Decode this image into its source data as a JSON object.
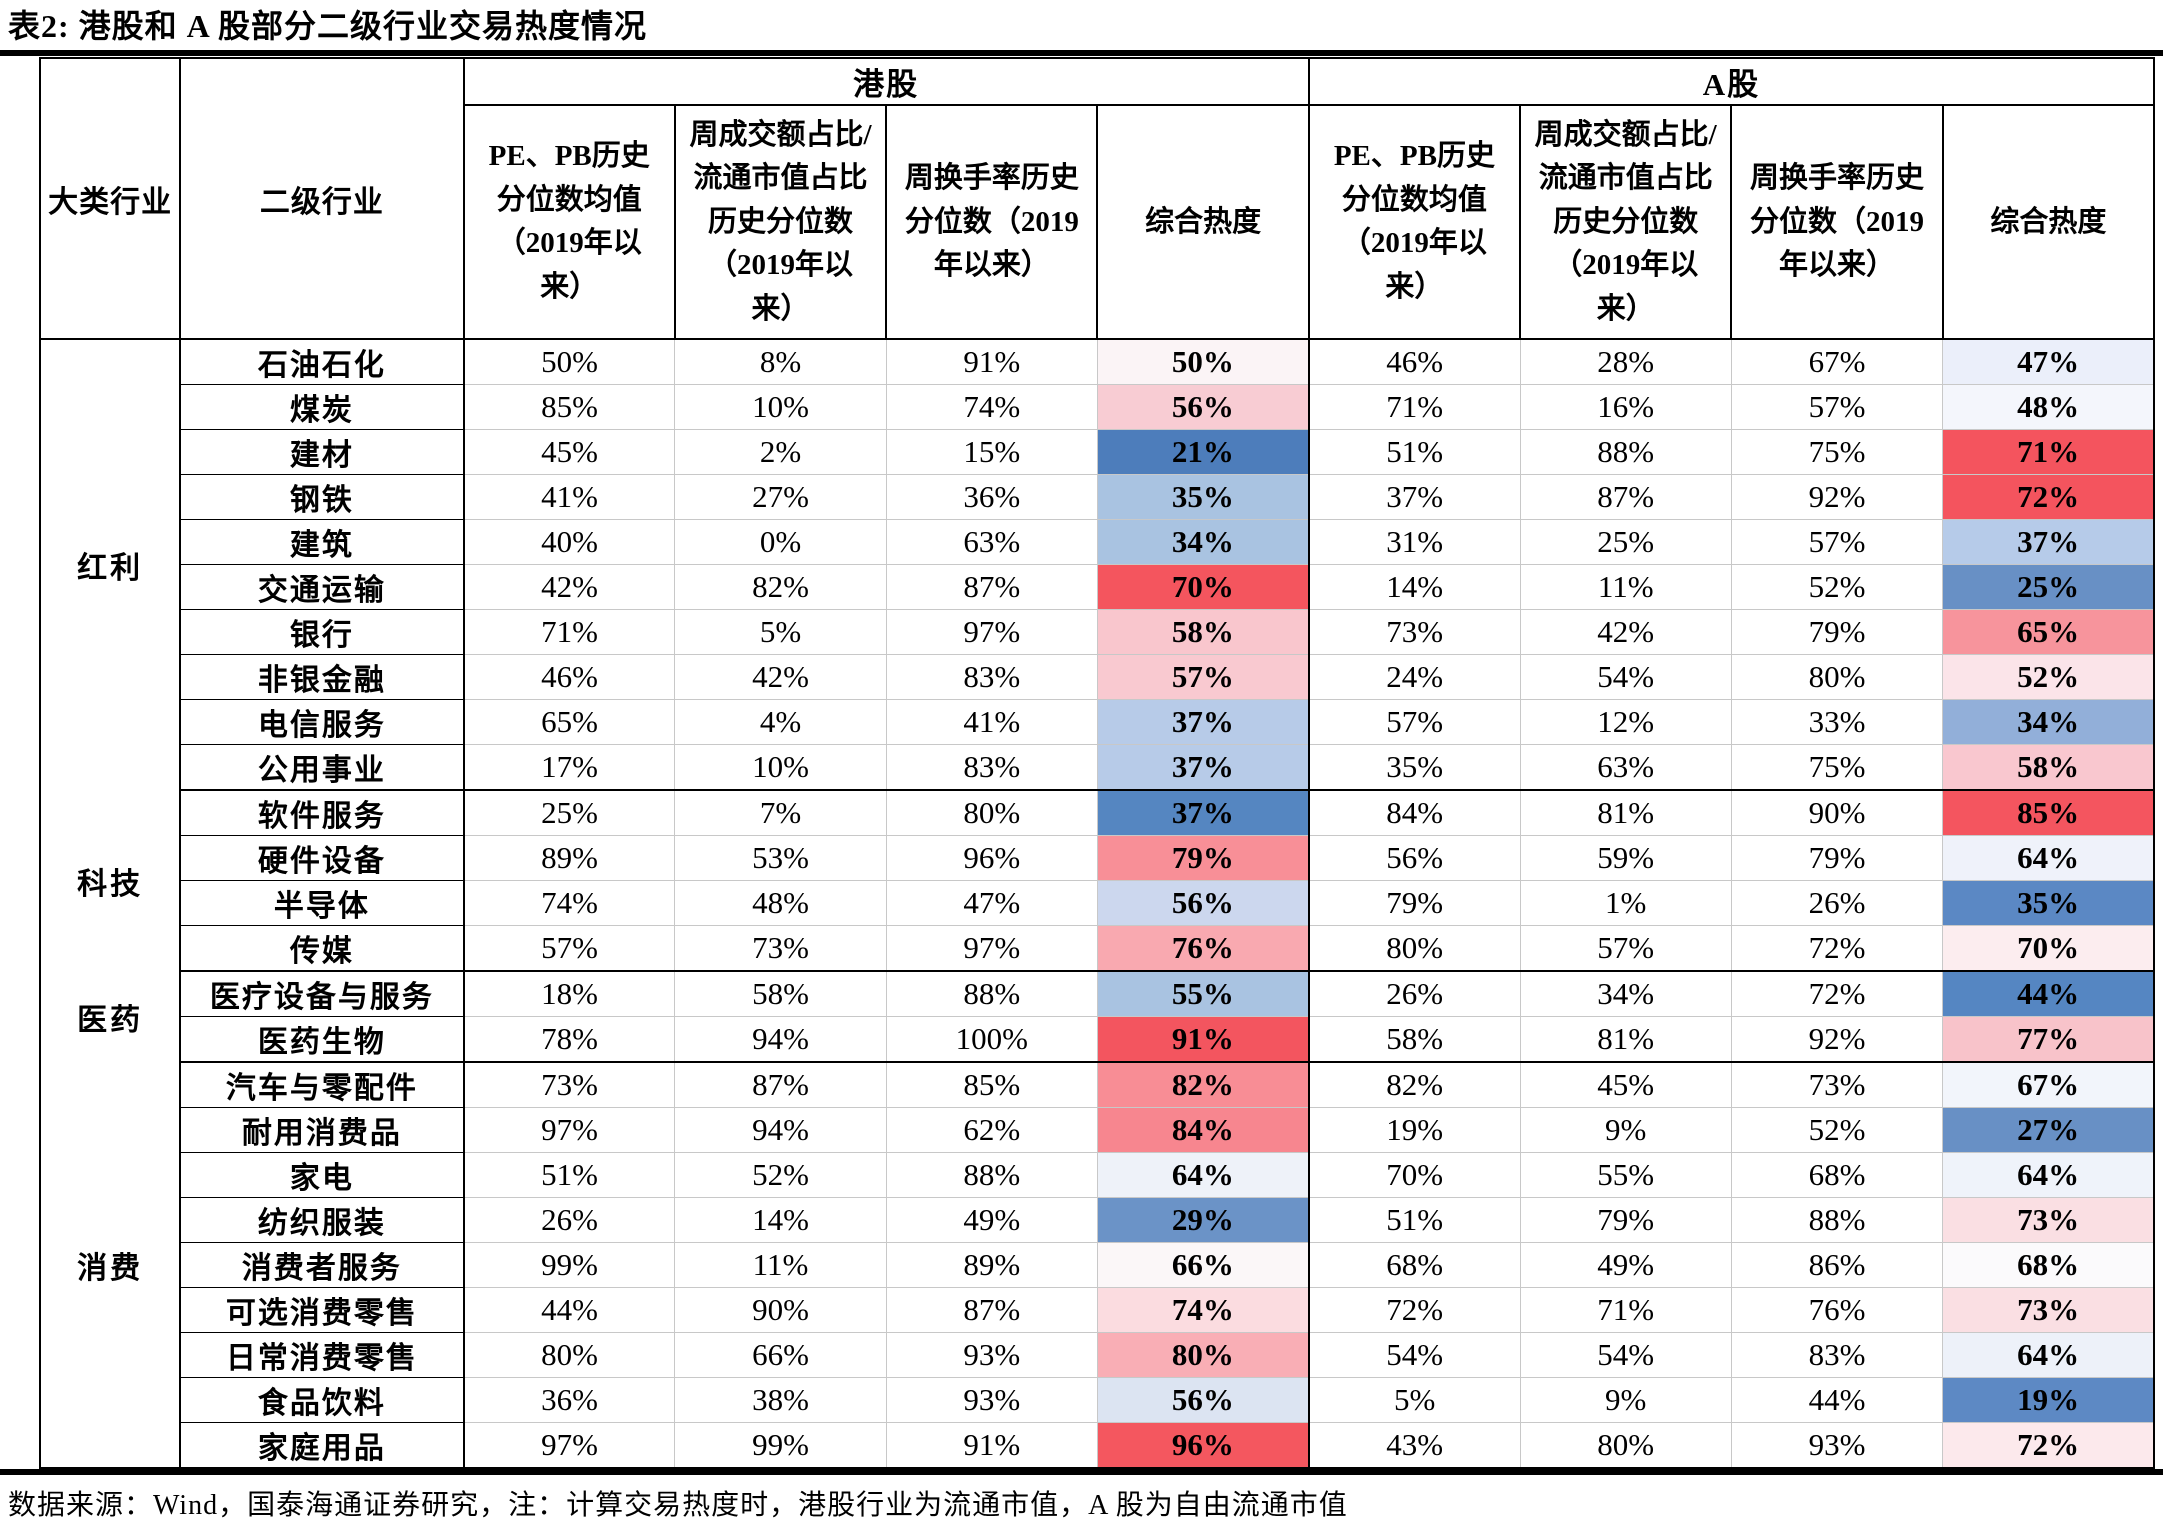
{
  "page": {
    "title": "表2: 港股和 A 股部分二级行业交易热度情况",
    "footer": "数据来源：Wind，国泰海通证券研究，注：计算交易热度时，港股行业为流通市值，A 股为自由流通市值"
  },
  "table": {
    "col_headers": {
      "major_industry": "大类行业",
      "sub_industry": "二级行业",
      "hk_market": "港股",
      "a_market": "A股",
      "metrics": [
        "PE、PB历史分位数均值（2019年以来）",
        "周成交额占比/流通市值占比历史分位数（2019年以来）",
        "周换手率历史分位数（2019年以来）",
        "综合热度"
      ]
    },
    "heat_scale": {
      "low_color": "#4d7dbb",
      "mid_color": "#ffffff",
      "high_color": "#f4545e"
    },
    "groups": [
      {
        "name": "红利",
        "rows": [
          {
            "industry": "石油石化",
            "hk": [
              "50%",
              "8%",
              "91%"
            ],
            "hk_heat": "50%",
            "hk_heat_bg": "#fbf4f6",
            "a": [
              "46%",
              "28%",
              "67%"
            ],
            "a_heat": "47%",
            "a_heat_bg": "#ebeffa"
          },
          {
            "industry": "煤炭",
            "hk": [
              "85%",
              "10%",
              "74%"
            ],
            "hk_heat": "56%",
            "hk_heat_bg": "#f8ccd3",
            "a": [
              "71%",
              "16%",
              "57%"
            ],
            "a_heat": "48%",
            "a_heat_bg": "#f4f6fc"
          },
          {
            "industry": "建材",
            "hk": [
              "45%",
              "2%",
              "15%"
            ],
            "hk_heat": "21%",
            "hk_heat_bg": "#4d7dbb",
            "a": [
              "51%",
              "88%",
              "75%"
            ],
            "a_heat": "71%",
            "a_heat_bg": "#f4545e"
          },
          {
            "industry": "钢铁",
            "hk": [
              "41%",
              "27%",
              "36%"
            ],
            "hk_heat": "35%",
            "hk_heat_bg": "#a9c3e1",
            "a": [
              "37%",
              "87%",
              "92%"
            ],
            "a_heat": "72%",
            "a_heat_bg": "#f4545e"
          },
          {
            "industry": "建筑",
            "hk": [
              "40%",
              "0%",
              "63%"
            ],
            "hk_heat": "34%",
            "hk_heat_bg": "#a9c3e1",
            "a": [
              "31%",
              "25%",
              "57%"
            ],
            "a_heat": "37%",
            "a_heat_bg": "#b6cbe9"
          },
          {
            "industry": "交通运输",
            "hk": [
              "42%",
              "82%",
              "87%"
            ],
            "hk_heat": "70%",
            "hk_heat_bg": "#f4555e",
            "a": [
              "14%",
              "11%",
              "52%"
            ],
            "a_heat": "25%",
            "a_heat_bg": "#6890c5"
          },
          {
            "industry": "银行",
            "hk": [
              "71%",
              "5%",
              "97%"
            ],
            "hk_heat": "58%",
            "hk_heat_bg": "#f9c6cd",
            "a": [
              "73%",
              "42%",
              "79%"
            ],
            "a_heat": "65%",
            "a_heat_bg": "#f7949c"
          },
          {
            "industry": "非银金融",
            "hk": [
              "46%",
              "42%",
              "83%"
            ],
            "hk_heat": "57%",
            "hk_heat_bg": "#f9c9d0",
            "a": [
              "24%",
              "54%",
              "80%"
            ],
            "a_heat": "52%",
            "a_heat_bg": "#fbe4e9"
          },
          {
            "industry": "电信服务",
            "hk": [
              "65%",
              "4%",
              "41%"
            ],
            "hk_heat": "37%",
            "hk_heat_bg": "#b7cbe8",
            "a": [
              "57%",
              "12%",
              "33%"
            ],
            "a_heat": "34%",
            "a_heat_bg": "#92afd9"
          },
          {
            "industry": "公用事业",
            "hk": [
              "17%",
              "10%",
              "83%"
            ],
            "hk_heat": "37%",
            "hk_heat_bg": "#b7cbe8",
            "a": [
              "35%",
              "63%",
              "75%"
            ],
            "a_heat": "58%",
            "a_heat_bg": "#f9c7cf"
          }
        ]
      },
      {
        "name": "科技",
        "rows": [
          {
            "industry": "软件服务",
            "hk": [
              "25%",
              "7%",
              "80%"
            ],
            "hk_heat": "37%",
            "hk_heat_bg": "#5586c1",
            "a": [
              "84%",
              "81%",
              "90%"
            ],
            "a_heat": "85%",
            "a_heat_bg": "#f4555f"
          },
          {
            "industry": "硬件设备",
            "hk": [
              "89%",
              "53%",
              "96%"
            ],
            "hk_heat": "79%",
            "hk_heat_bg": "#f88f97",
            "a": [
              "56%",
              "59%",
              "79%"
            ],
            "a_heat": "64%",
            "a_heat_bg": "#eff2fa"
          },
          {
            "industry": "半导体",
            "hk": [
              "74%",
              "48%",
              "47%"
            ],
            "hk_heat": "56%",
            "hk_heat_bg": "#ccd7ee",
            "a": [
              "79%",
              "1%",
              "26%"
            ],
            "a_heat": "35%",
            "a_heat_bg": "#5b88c4"
          },
          {
            "industry": "传媒",
            "hk": [
              "57%",
              "73%",
              "97%"
            ],
            "hk_heat": "76%",
            "hk_heat_bg": "#f9a9b0",
            "a": [
              "80%",
              "57%",
              "72%"
            ],
            "a_heat": "70%",
            "a_heat_bg": "#fcedef"
          }
        ]
      },
      {
        "name": "医药",
        "rows": [
          {
            "industry": "医疗设备与服务",
            "hk": [
              "18%",
              "58%",
              "88%"
            ],
            "hk_heat": "55%",
            "hk_heat_bg": "#a9c3e1",
            "a": [
              "26%",
              "34%",
              "72%"
            ],
            "a_heat": "44%",
            "a_heat_bg": "#5586c2"
          },
          {
            "industry": "医药生物",
            "hk": [
              "78%",
              "94%",
              "100%"
            ],
            "hk_heat": "91%",
            "hk_heat_bg": "#f3555f",
            "a": [
              "58%",
              "81%",
              "92%"
            ],
            "a_heat": "77%",
            "a_heat_bg": "#f8c3ca"
          }
        ]
      },
      {
        "name": "消费",
        "rows": [
          {
            "industry": "汽车与零配件",
            "hk": [
              "73%",
              "87%",
              "85%"
            ],
            "hk_heat": "82%",
            "hk_heat_bg": "#f88d95",
            "a": [
              "82%",
              "45%",
              "73%"
            ],
            "a_heat": "67%",
            "a_heat_bg": "#f2f5fb"
          },
          {
            "industry": "耐用消费品",
            "hk": [
              "97%",
              "94%",
              "62%"
            ],
            "hk_heat": "84%",
            "hk_heat_bg": "#f7868f",
            "a": [
              "19%",
              "9%",
              "52%"
            ],
            "a_heat": "27%",
            "a_heat_bg": "#6890c5"
          },
          {
            "industry": "家电",
            "hk": [
              "51%",
              "52%",
              "88%"
            ],
            "hk_heat": "64%",
            "hk_heat_bg": "#eef2f9",
            "a": [
              "70%",
              "55%",
              "68%"
            ],
            "a_heat": "64%",
            "a_heat_bg": "#eff3fa"
          },
          {
            "industry": "纺织服装",
            "hk": [
              "26%",
              "14%",
              "49%"
            ],
            "hk_heat": "29%",
            "hk_heat_bg": "#6b93c7",
            "a": [
              "51%",
              "79%",
              "88%"
            ],
            "a_heat": "73%",
            "a_heat_bg": "#fadfe3"
          },
          {
            "industry": "消费者服务",
            "hk": [
              "99%",
              "11%",
              "89%"
            ],
            "hk_heat": "66%",
            "hk_heat_bg": "#fbf7f8",
            "a": [
              "68%",
              "49%",
              "86%"
            ],
            "a_heat": "68%",
            "a_heat_bg": "#fbfafc"
          },
          {
            "industry": "可选消费零售",
            "hk": [
              "44%",
              "90%",
              "87%"
            ],
            "hk_heat": "74%",
            "hk_heat_bg": "#fbdce0",
            "a": [
              "72%",
              "71%",
              "76%"
            ],
            "a_heat": "73%",
            "a_heat_bg": "#fadfe3"
          },
          {
            "industry": "日常消费零售",
            "hk": [
              "80%",
              "66%",
              "93%"
            ],
            "hk_heat": "80%",
            "hk_heat_bg": "#f9aeb5",
            "a": [
              "54%",
              "54%",
              "83%"
            ],
            "a_heat": "64%",
            "a_heat_bg": "#edf1f9"
          },
          {
            "industry": "食品饮料",
            "hk": [
              "36%",
              "38%",
              "93%"
            ],
            "hk_heat": "56%",
            "hk_heat_bg": "#dce4f2",
            "a": [
              "5%",
              "9%",
              "44%"
            ],
            "a_heat": "19%",
            "a_heat_bg": "#5d89c4"
          },
          {
            "industry": "家庭用品",
            "hk": [
              "97%",
              "99%",
              "91%"
            ],
            "hk_heat": "96%",
            "hk_heat_bg": "#f4575f",
            "a": [
              "43%",
              "80%",
              "93%"
            ],
            "a_heat": "72%",
            "a_heat_bg": "#fce9ec"
          }
        ]
      }
    ]
  }
}
